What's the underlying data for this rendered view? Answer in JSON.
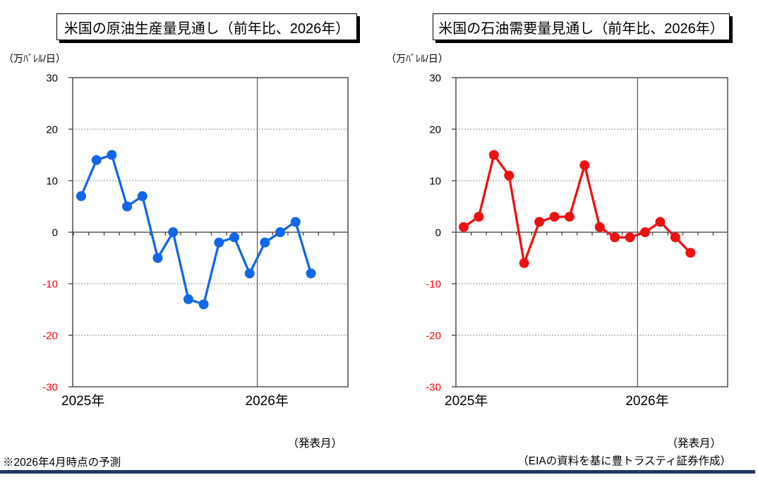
{
  "footer": {
    "footnote": "※2026年4月時点の予測",
    "source": "（EIAの資料を基に豊トラスティ証券作成）",
    "rule_color": "#1F3864"
  },
  "chart_data": [
    {
      "type": "line",
      "title": "米国の原油生産量見通し（前年比、2026年）",
      "unit_label": "（万ﾊﾞﾚﾙ/日）",
      "xlabel": "（発表月）",
      "x_tick_labels": [
        "2025年",
        "2026年"
      ],
      "ylim": [
        -30,
        30
      ],
      "y_ticks": [
        30,
        20,
        10,
        0,
        -10,
        -20,
        -30
      ],
      "negative_label_color": "#FF0000",
      "grid": "dotted horizontal lines at ±10 and ±20; solid zero axis with monthly ticks; vertical year divider between Dec 2025 and Jan 2026",
      "n_points": 16,
      "year_boundary_after_point": 12,
      "series": [
        {
          "name": "米国の原油生産量（前年比）",
          "color": "#1167E8",
          "values": [
            7,
            14,
            15,
            5,
            7,
            -5,
            0,
            -13,
            -14,
            -2,
            -1,
            -8,
            -2,
            0,
            2,
            -8
          ]
        }
      ]
    },
    {
      "type": "line",
      "title": "米国の石油需要量見通し（前年比、2026年）",
      "unit_label": "（万ﾊﾞﾚﾙ/日）",
      "xlabel": "（発表月）",
      "x_tick_labels": [
        "2025年",
        "2026年"
      ],
      "ylim": [
        -30,
        30
      ],
      "y_ticks": [
        30,
        20,
        10,
        0,
        -10,
        -20,
        -30
      ],
      "negative_label_color": "#FF0000",
      "grid": "dotted horizontal lines at ±10 and ±20; solid zero axis with monthly ticks; vertical year divider between Dec 2025 and Jan 2026",
      "n_points": 16,
      "year_boundary_after_point": 12,
      "series": [
        {
          "name": "米国の石油需要量（前年比）",
          "color": "#EE1111",
          "values": [
            1,
            3,
            15,
            11,
            -6,
            2,
            3,
            3,
            13,
            1,
            -1,
            -1,
            0,
            2,
            -1,
            -4
          ]
        }
      ]
    }
  ]
}
